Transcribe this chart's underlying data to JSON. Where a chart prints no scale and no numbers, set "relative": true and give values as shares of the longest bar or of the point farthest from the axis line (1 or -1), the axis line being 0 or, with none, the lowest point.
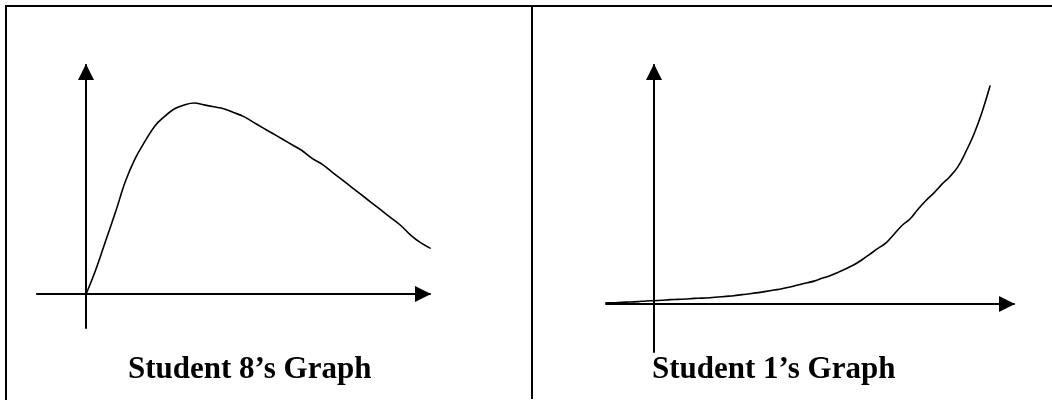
{
  "chart_data": [
    {
      "type": "line",
      "title": "Student 8’s Graph",
      "relative": true,
      "marker": "none",
      "grid": false,
      "color": "#000000",
      "categories": [
        null,
        null,
        null,
        null,
        null,
        null,
        null,
        null,
        null,
        null,
        null,
        null,
        null,
        null,
        null,
        null,
        null,
        null,
        null,
        null,
        null,
        null,
        null,
        null,
        null,
        null,
        null,
        null,
        null,
        null,
        null,
        null,
        null,
        null,
        null,
        null,
        null,
        null,
        null,
        null,
        null
      ],
      "values": [
        null,
        null,
        null,
        null,
        null,
        0,
        0.13,
        0.28,
        0.43,
        0.59,
        0.71,
        0.8,
        0.88,
        0.93,
        0.97,
        0.99,
        1,
        0.99,
        0.98,
        0.97,
        0.95,
        0.93,
        0.9,
        0.87,
        0.84,
        0.81,
        0.78,
        0.75,
        0.71,
        0.68,
        0.64,
        0.6,
        0.56,
        0.52,
        0.48,
        0.44,
        0.4,
        0.36,
        0.31,
        0.27,
        0.24
      ]
    },
    {
      "type": "line",
      "title": "Student 1’s Graph",
      "relative": true,
      "marker": "none",
      "grid": false,
      "color": "#000000",
      "categories": [
        null,
        null,
        null,
        null,
        null,
        null,
        null,
        null,
        null,
        null,
        null,
        null,
        null,
        null,
        null,
        null,
        null,
        null,
        null,
        null,
        null,
        null,
        null,
        null,
        null,
        null,
        null,
        null,
        null,
        null,
        null,
        null,
        null,
        null,
        null,
        null,
        null,
        null,
        null,
        null,
        null,
        null,
        null,
        null,
        null,
        null,
        null,
        null,
        null,
        null,
        null,
        null
      ],
      "values": [
        0.005,
        0.006,
        0.008,
        0.009,
        0.011,
        0.014,
        0.015,
        0.017,
        0.02,
        0.021,
        0.023,
        0.026,
        0.027,
        0.029,
        0.032,
        0.035,
        0.038,
        0.043,
        0.047,
        0.052,
        0.058,
        0.064,
        0.07,
        0.078,
        0.087,
        0.096,
        0.105,
        0.118,
        0.13,
        0.145,
        0.162,
        0.18,
        0.203,
        0.229,
        0.255,
        0.28,
        0.32,
        0.36,
        0.39,
        0.435,
        0.475,
        0.51,
        0.55,
        0.585,
        0.63,
        0.7,
        0.78,
        0.88,
        1,
        null,
        null,
        null
      ]
    }
  ]
}
